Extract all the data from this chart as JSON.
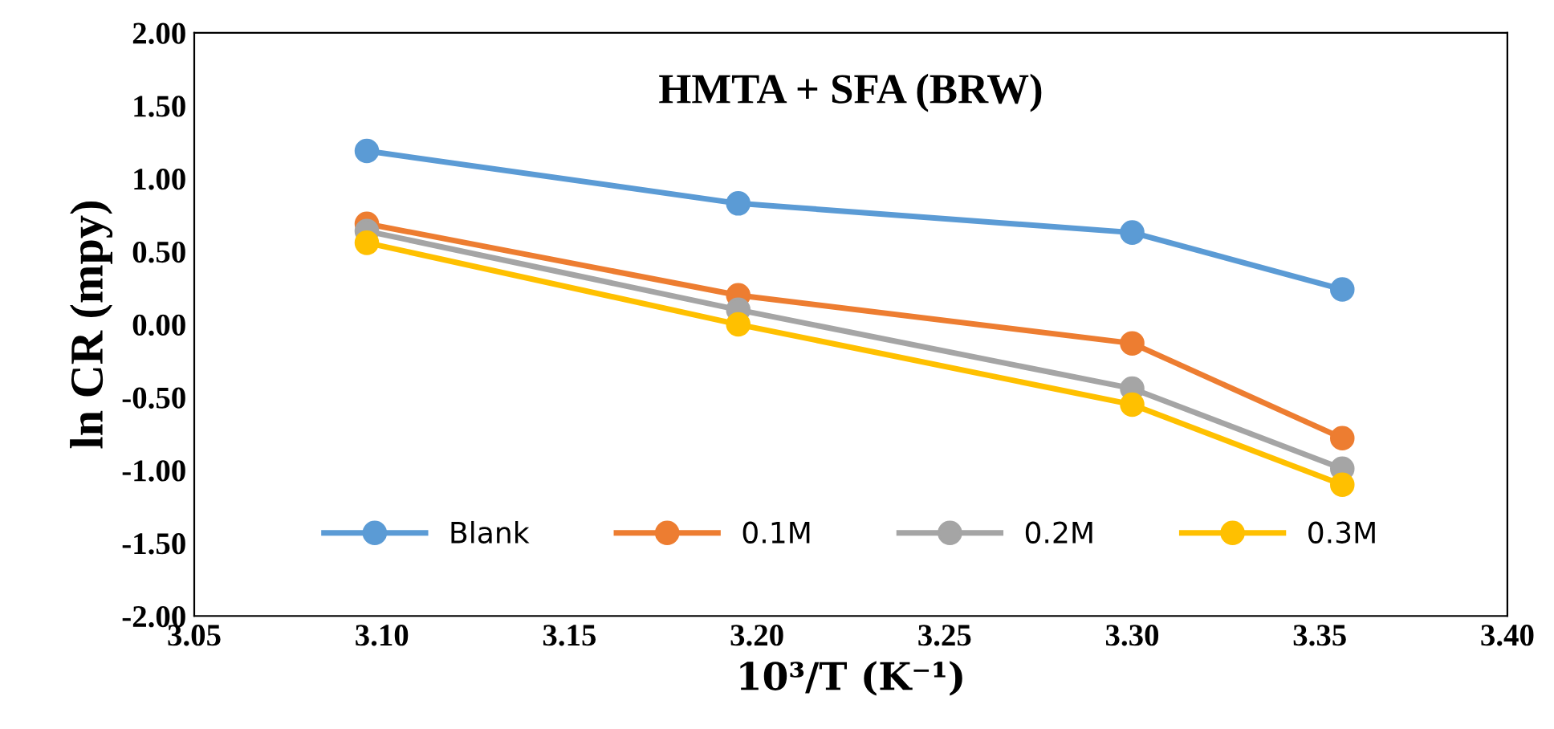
{
  "chart_data": {
    "type": "line",
    "title": "HMTA + SFA (BRW)",
    "xlabel": "10³/T (K⁻¹)",
    "ylabel": "ln CR (mpy)",
    "x": [
      3.096,
      3.195,
      3.3,
      3.356
    ],
    "series": [
      {
        "name": "Blank",
        "color": "#5b9bd5",
        "values": [
          1.19,
          0.83,
          0.63,
          0.24
        ]
      },
      {
        "name": "0.1M",
        "color": "#ed7d31",
        "values": [
          0.69,
          0.2,
          -0.13,
          -0.78
        ]
      },
      {
        "name": "0.2M",
        "color": "#a5a5a5",
        "values": [
          0.64,
          0.1,
          -0.44,
          -0.99
        ]
      },
      {
        "name": "0.3M",
        "color": "#ffc000",
        "values": [
          0.56,
          0.0,
          -0.55,
          -1.1
        ]
      }
    ],
    "xlim": [
      3.05,
      3.4
    ],
    "xticks": [
      {
        "value": 3.05,
        "label": "3.05"
      },
      {
        "value": 3.1,
        "label": "3.10"
      },
      {
        "value": 3.15,
        "label": "3.15"
      },
      {
        "value": 3.2,
        "label": "3.20"
      },
      {
        "value": 3.25,
        "label": "3.25"
      },
      {
        "value": 3.3,
        "label": "3.30"
      },
      {
        "value": 3.35,
        "label": "3.35"
      },
      {
        "value": 3.4,
        "label": "3.40"
      }
    ],
    "ylim": [
      -2,
      2
    ],
    "yticks": [
      {
        "value": -2,
        "label": "-2.00"
      },
      {
        "value": -1.5,
        "label": "-1.50"
      },
      {
        "value": -1,
        "label": "-1.00"
      },
      {
        "value": -0.5,
        "label": "-0.50"
      },
      {
        "value": 0,
        "label": "0.00"
      },
      {
        "value": 0.5,
        "label": "0.50"
      },
      {
        "value": 1,
        "label": "1.00"
      },
      {
        "value": 1.5,
        "label": "1.50"
      },
      {
        "value": 2,
        "label": "2.00"
      }
    ],
    "grid": false,
    "legend": "bottom",
    "marker": "circle",
    "line_style": "solid"
  }
}
